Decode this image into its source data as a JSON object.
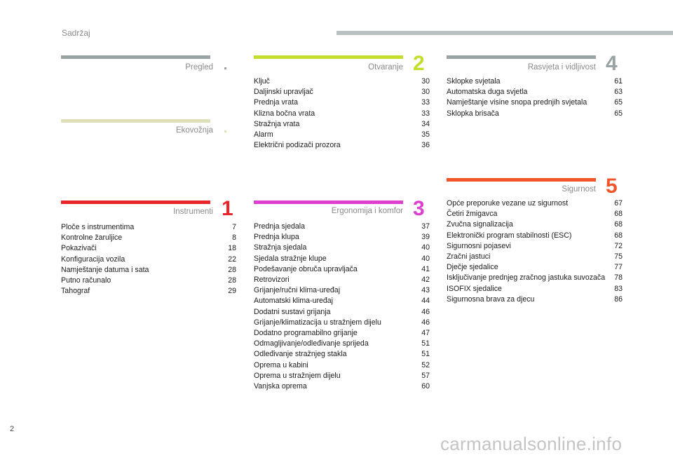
{
  "header": {
    "title": "Sadržaj"
  },
  "sections": {
    "pregled": {
      "title": "Pregled",
      "color": "#9aa3a3"
    },
    "ekovoznja": {
      "title": "Ekovožnja",
      "color": "#dfe0b8"
    },
    "instrumenti": {
      "title": "Instrumenti",
      "number": "1",
      "color": "#e8262a",
      "entries": [
        {
          "label": "Ploče s instrumentima",
          "page": "7"
        },
        {
          "label": "Kontrolne žaruljice",
          "page": "8"
        },
        {
          "label": "Pokazivači",
          "page": "18"
        },
        {
          "label": "Konfiguracija vozila",
          "page": "22"
        },
        {
          "label": "Namještanje datuma i sata",
          "page": "28"
        },
        {
          "label": "Putno računalo",
          "page": "28"
        },
        {
          "label": "Tahograf",
          "page": "29"
        }
      ]
    },
    "otvaranje": {
      "title": "Otvaranje",
      "number": "2",
      "color": "#c5dd2c",
      "entries": [
        {
          "label": "Ključ",
          "page": "30"
        },
        {
          "label": "Daljinski upravljač",
          "page": "30"
        },
        {
          "label": "Prednja vrata",
          "page": "33"
        },
        {
          "label": "Klizna bočna vrata",
          "page": "33"
        },
        {
          "label": "Stražnja vrata",
          "page": "34"
        },
        {
          "label": "Alarm",
          "page": "35"
        },
        {
          "label": "Električni podizači prozora",
          "page": "36"
        }
      ]
    },
    "ergonomija": {
      "title": "Ergonomija i komfor",
      "number": "3",
      "color": "#dd3fcf",
      "entries": [
        {
          "label": "Prednja sjedala",
          "page": "37"
        },
        {
          "label": "Prednja klupa",
          "page": "39"
        },
        {
          "label": "Stražnja sjedala",
          "page": "40"
        },
        {
          "label": "Sjedala stražnje klupe",
          "page": "40"
        },
        {
          "label": "Podešavanje obruča upravljača",
          "page": "41"
        },
        {
          "label": "Retrovizori",
          "page": "42"
        },
        {
          "label": "Grijanje/ručni klima-uređaj",
          "page": "43"
        },
        {
          "label": "Automatski klima-uređaj",
          "page": "44"
        },
        {
          "label": "Dodatni sustavi grijanja",
          "page": "46"
        },
        {
          "label": "Grijanje/klimatizacija u stražnjem dijelu",
          "page": "46"
        },
        {
          "label": "Dodatno programabilno grijanje",
          "page": "47"
        },
        {
          "label": "Odmagljivanje/odleđivanje sprijeda",
          "page": "51"
        },
        {
          "label": "Odleđivanje stražnjeg stakla",
          "page": "51"
        },
        {
          "label": "Oprema u kabini",
          "page": "52"
        },
        {
          "label": "Oprema u stražnjem dijelu",
          "page": "57"
        },
        {
          "label": "Vanjska oprema",
          "page": "60"
        }
      ]
    },
    "rasvjeta": {
      "title": "Rasvjeta i vidljivost",
      "number": "4",
      "color": "#9aa3a3",
      "entries": [
        {
          "label": "Sklopke svjetala",
          "page": "61"
        },
        {
          "label": "Automatska duga svjetla",
          "page": "63"
        },
        {
          "label": "Namještanje visine snopa prednjih svjetala",
          "page": "65"
        },
        {
          "label": "Sklopka brisača",
          "page": "65"
        }
      ]
    },
    "sigurnost": {
      "title": "Sigurnost",
      "number": "5",
      "color": "#f0552a",
      "entries": [
        {
          "label": "Opće preporuke vezane uz sigurnost",
          "page": "67"
        },
        {
          "label": "Četiri žmigavca",
          "page": "68"
        },
        {
          "label": "Zvučna signalizacija",
          "page": "68"
        },
        {
          "label": "Elektronički program stabilnosti (ESC)",
          "page": "68"
        },
        {
          "label": "Sigurnosni pojasevi",
          "page": "72"
        },
        {
          "label": "Zračni jastuci",
          "page": "75"
        },
        {
          "label": "Dječje sjedalice",
          "page": "77"
        },
        {
          "label": "Isključivanje prednjeg zračnog jastuka suvozača",
          "page": "78"
        },
        {
          "label": "ISOFIX sjedalice",
          "page": "83"
        },
        {
          "label": "Sigurnosna brava za djecu",
          "page": "86"
        }
      ]
    }
  },
  "footer": {
    "page_number": "2",
    "watermark": "carmanualsonline.info"
  }
}
